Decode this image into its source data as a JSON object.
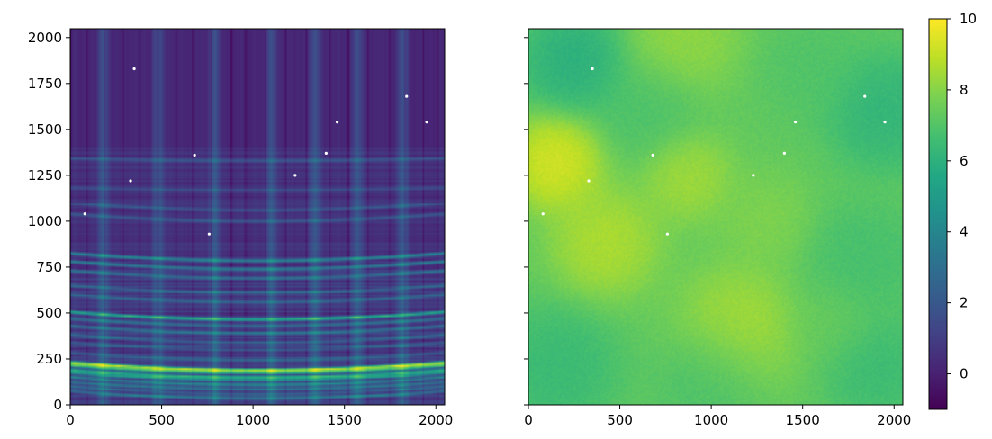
{
  "chart_data": [
    {
      "type": "heatmap",
      "xlabel": "",
      "ylabel": "",
      "xlim": [
        0,
        2048
      ],
      "ylim": [
        0,
        2048
      ],
      "xticks": [
        0,
        500,
        1000,
        1500,
        2000
      ],
      "yticks": [
        0,
        250,
        500,
        750,
        1000,
        1250,
        1500,
        1750,
        2000
      ],
      "colormap": "viridis",
      "vmin": -1,
      "vmax": 10,
      "background_value": 0.2,
      "row_bands": [
        {
          "y": 35,
          "value": 3.5
        },
        {
          "y": 60,
          "value": 2.5
        },
        {
          "y": 85,
          "value": 3.0
        },
        {
          "y": 110,
          "value": 4.0
        },
        {
          "y": 135,
          "value": 5.0
        },
        {
          "y": 150,
          "value": 6.0
        },
        {
          "y": 175,
          "value": 7.0
        },
        {
          "y": 190,
          "value": 9.5
        },
        {
          "y": 245,
          "value": 2.0
        },
        {
          "y": 300,
          "value": 2.0
        },
        {
          "y": 340,
          "value": 2.5
        },
        {
          "y": 390,
          "value": 3.0
        },
        {
          "y": 430,
          "value": 3.0
        },
        {
          "y": 465,
          "value": 6.5
        },
        {
          "y": 560,
          "value": 2.5
        },
        {
          "y": 610,
          "value": 2.5
        },
        {
          "y": 690,
          "value": 3.0
        },
        {
          "y": 740,
          "value": 4.0
        },
        {
          "y": 785,
          "value": 4.5
        },
        {
          "y": 1000,
          "value": 2.0
        },
        {
          "y": 1060,
          "value": 2.0
        },
        {
          "y": 1170,
          "value": 1.5
        },
        {
          "y": 1330,
          "value": 2.0
        }
      ],
      "column_stripes": [
        0,
        90,
        190,
        290,
        380,
        480,
        580,
        670,
        770,
        880,
        960,
        1070,
        1180,
        1290,
        1420,
        1520,
        1630,
        1750,
        1830,
        1930,
        2010
      ],
      "column_glows": [
        180,
        480,
        790,
        1100,
        1340,
        1570,
        1820
      ],
      "hot_pixels": [
        [
          350,
          1830
        ],
        [
          80,
          1040
        ],
        [
          680,
          1360
        ],
        [
          330,
          1220
        ],
        [
          1230,
          1250
        ],
        [
          1400,
          1370
        ],
        [
          760,
          930
        ],
        [
          1840,
          1680
        ],
        [
          1950,
          1540
        ],
        [
          1460,
          1540
        ]
      ]
    },
    {
      "type": "heatmap",
      "xlabel": "",
      "ylabel": "",
      "xlim": [
        0,
        2048
      ],
      "ylim": [
        0,
        2048
      ],
      "xticks": [
        0,
        500,
        1000,
        1500,
        2000
      ],
      "yticks": [
        0,
        250,
        500,
        750,
        1000,
        1250,
        1500,
        1750,
        2000
      ],
      "shared_y": true,
      "colormap": "viridis",
      "vmin": -1,
      "vmax": 10,
      "background_value": 7.3,
      "blobs": [
        {
          "x": 150,
          "y": 1320,
          "r": 200,
          "value": 9.8
        },
        {
          "x": 420,
          "y": 880,
          "r": 230,
          "value": 9.0
        },
        {
          "x": 870,
          "y": 1240,
          "r": 190,
          "value": 8.7
        },
        {
          "x": 1150,
          "y": 420,
          "r": 260,
          "value": 8.8
        },
        {
          "x": 850,
          "y": 2000,
          "r": 240,
          "value": 8.4
        },
        {
          "x": 1300,
          "y": 1000,
          "r": 200,
          "value": 8.0
        },
        {
          "x": 250,
          "y": 1870,
          "r": 220,
          "value": 5.6
        },
        {
          "x": 150,
          "y": 200,
          "r": 260,
          "value": 6.2
        },
        {
          "x": 1950,
          "y": 1600,
          "r": 240,
          "value": 5.9
        },
        {
          "x": 1820,
          "y": 780,
          "r": 250,
          "value": 6.6
        },
        {
          "x": 650,
          "y": 1600,
          "r": 220,
          "value": 6.8
        },
        {
          "x": 1000,
          "y": 150,
          "r": 230,
          "value": 6.7
        },
        {
          "x": 1900,
          "y": 200,
          "r": 220,
          "value": 6.3
        },
        {
          "x": 1550,
          "y": 1850,
          "r": 220,
          "value": 6.9
        },
        {
          "x": 1650,
          "y": 450,
          "r": 200,
          "value": 7.4
        }
      ],
      "hot_pixels": [
        [
          350,
          1830
        ],
        [
          80,
          1040
        ],
        [
          680,
          1360
        ],
        [
          330,
          1220
        ],
        [
          1230,
          1250
        ],
        [
          1400,
          1370
        ],
        [
          760,
          930
        ],
        [
          1840,
          1680
        ],
        [
          1950,
          1540
        ],
        [
          1460,
          1540
        ]
      ]
    }
  ],
  "colorbar": {
    "vmin": -1,
    "vmax": 10,
    "ticks": [
      0,
      2,
      4,
      6,
      8,
      10
    ]
  }
}
